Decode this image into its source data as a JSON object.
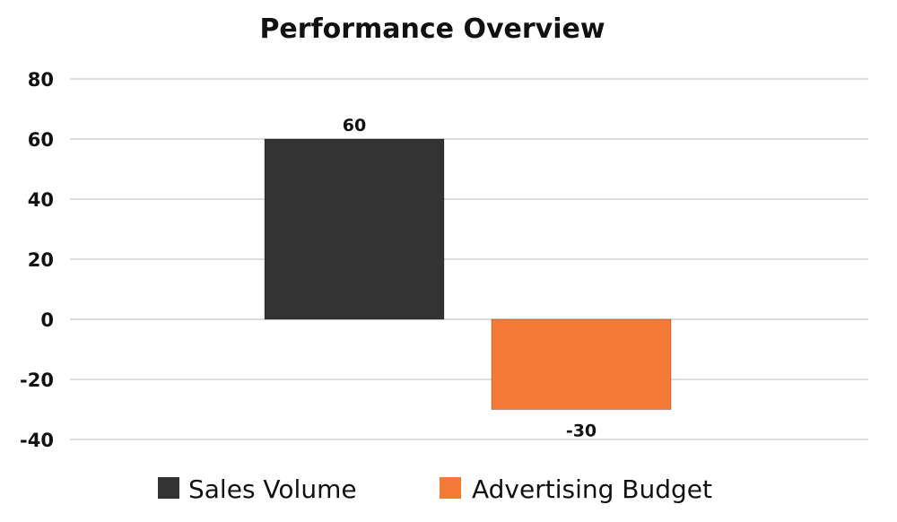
{
  "chart_data": {
    "type": "bar",
    "title": "Performance Overview",
    "xlabel": "",
    "ylabel": "",
    "ylim": [
      -40,
      80
    ],
    "yticks": [
      80,
      60,
      40,
      20,
      0,
      -20,
      -40
    ],
    "grid": true,
    "legend_position": "bottom",
    "series": [
      {
        "name": "Sales Volume",
        "values": [
          60
        ],
        "color": "#333333"
      },
      {
        "name": "Advertising Budget",
        "values": [
          -30
        ],
        "color": "#F47A38"
      }
    ]
  }
}
